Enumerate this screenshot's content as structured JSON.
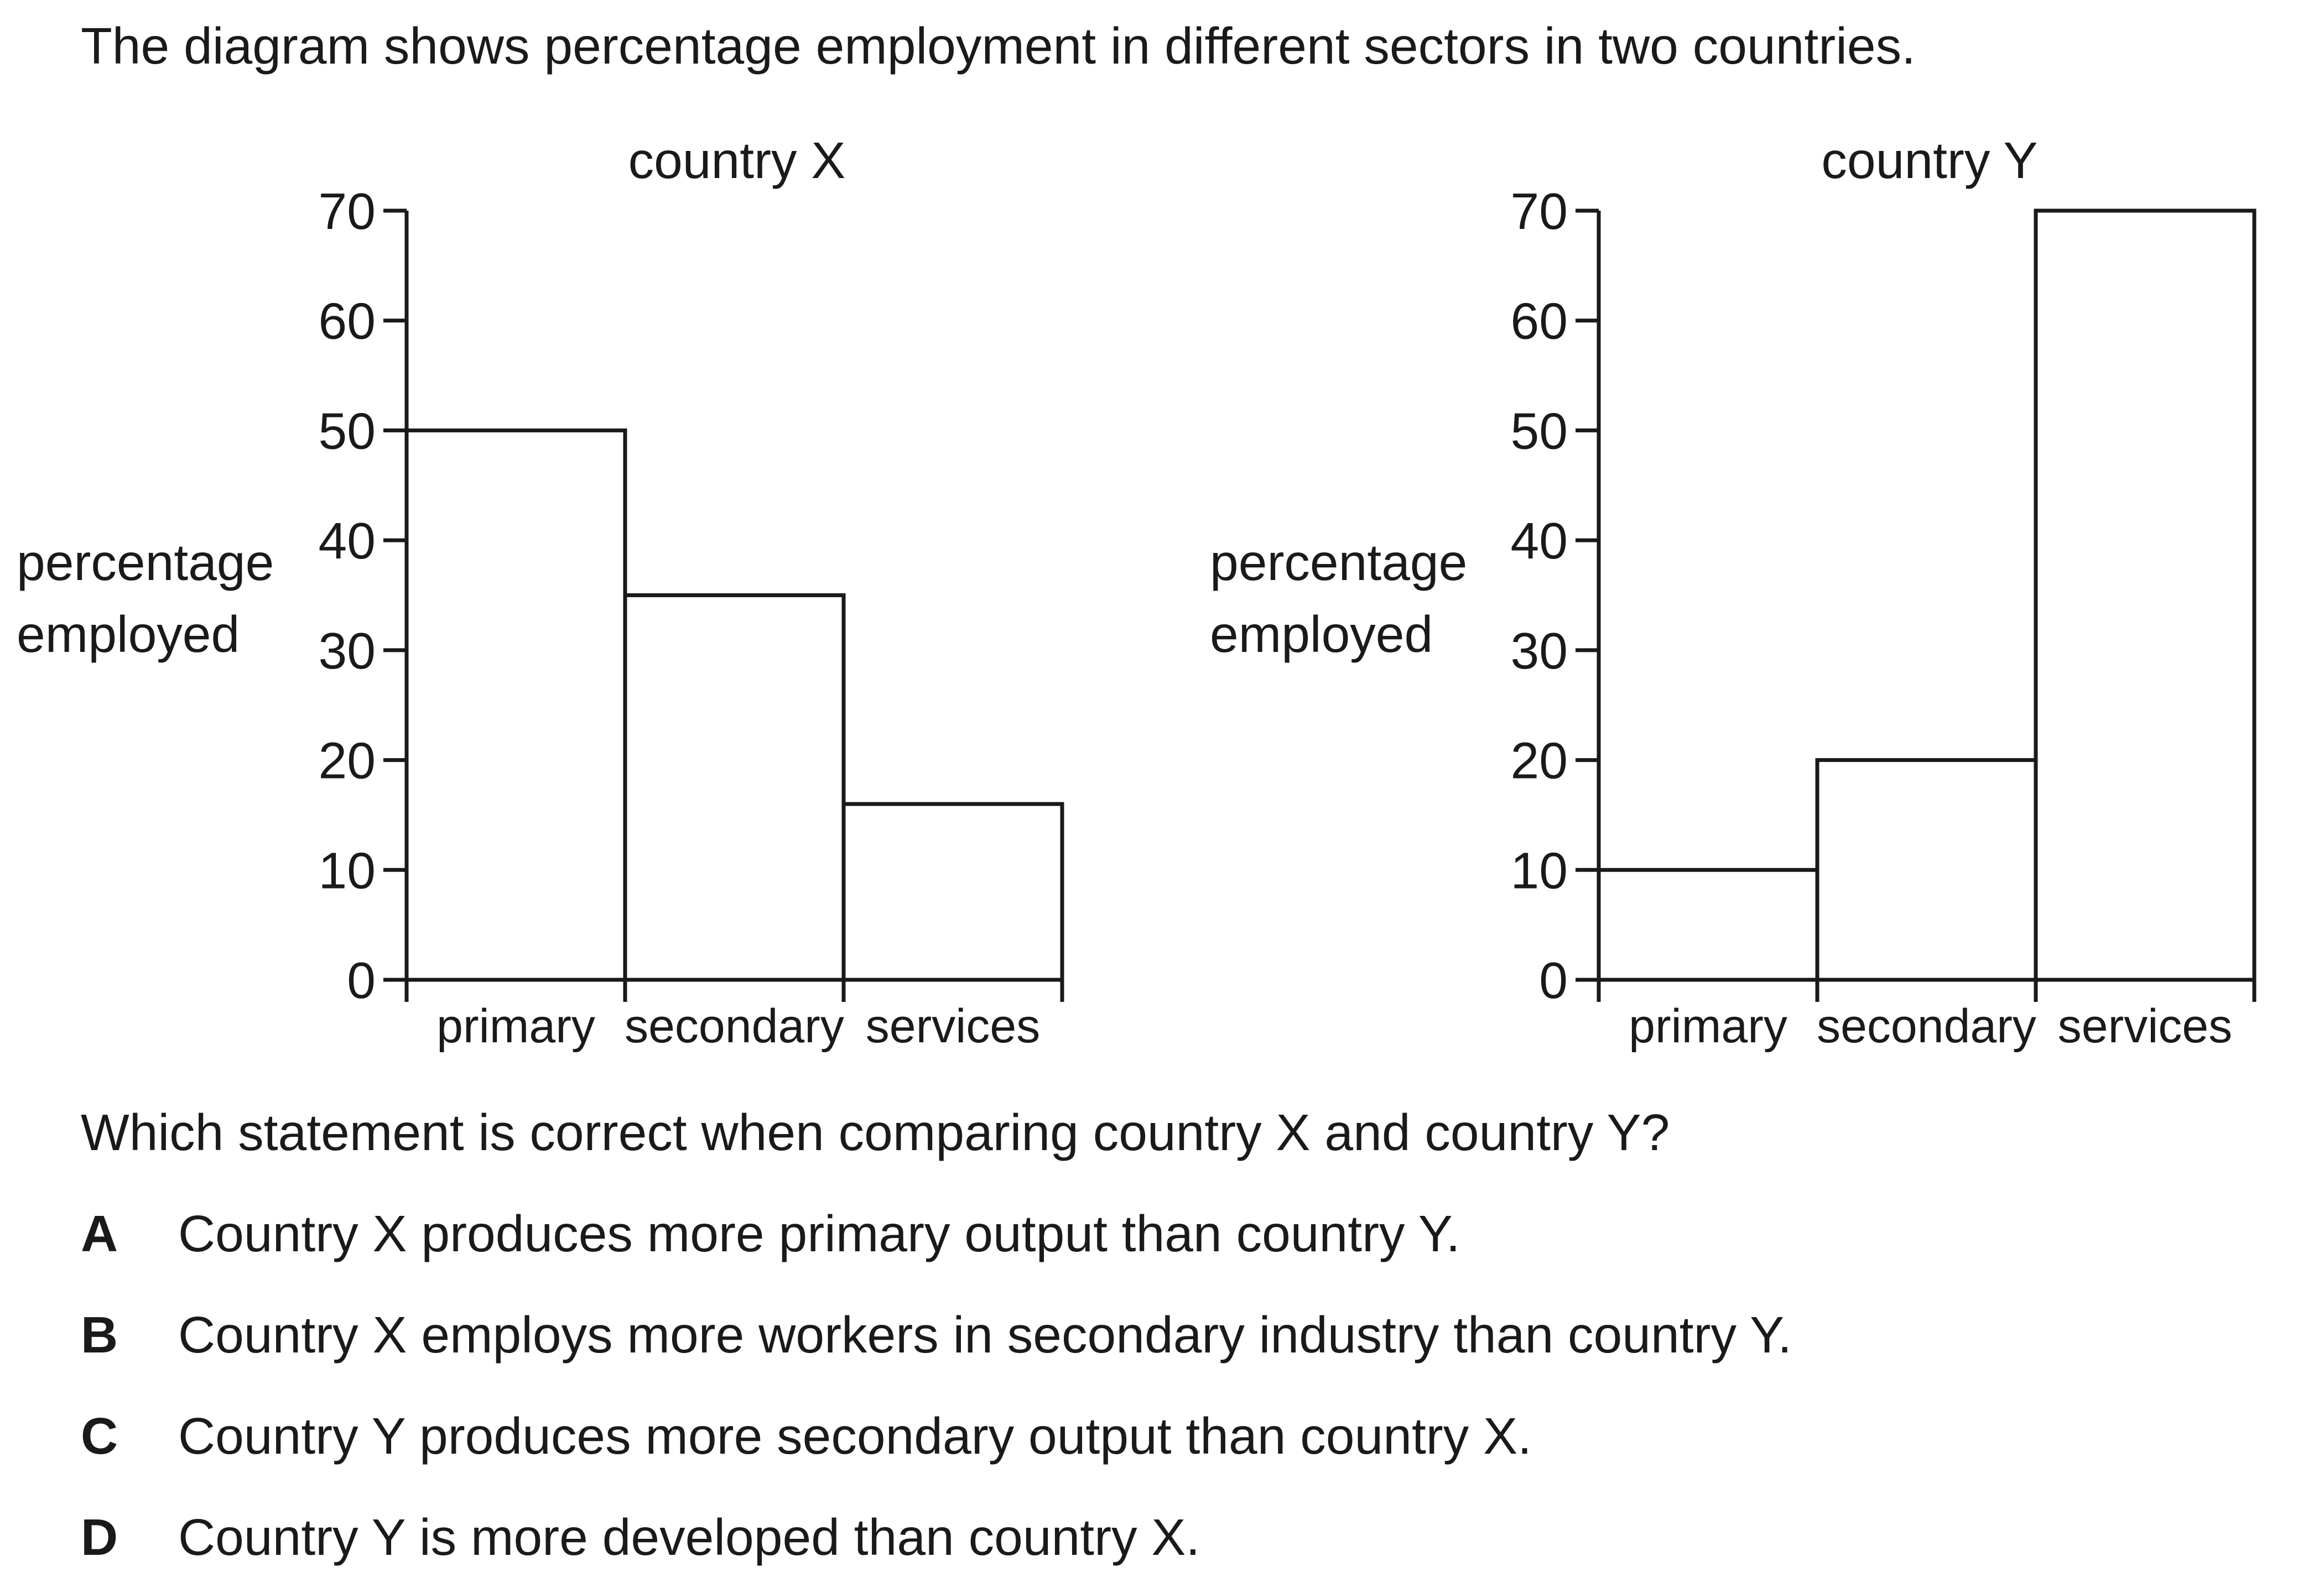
{
  "intro": "The diagram shows percentage employment in different sectors in two countries.",
  "question": "Which statement is correct when comparing country X and country Y?",
  "options": [
    {
      "letter": "A",
      "text": "Country X produces more primary output than country Y."
    },
    {
      "letter": "B",
      "text": "Country X employs more workers in secondary industry than country Y."
    },
    {
      "letter": "C",
      "text": "Country Y produces more secondary output than country X."
    },
    {
      "letter": "D",
      "text": "Country Y is more developed than country X."
    }
  ],
  "chart_data": [
    {
      "type": "bar",
      "title": "country X",
      "ylabel": [
        "percentage",
        "employed"
      ],
      "xlabel": "",
      "categories": [
        "primary",
        "secondary",
        "services"
      ],
      "values": [
        50,
        35,
        16
      ],
      "ylim": [
        0,
        70
      ],
      "yticks": [
        0,
        10,
        20,
        30,
        40,
        50,
        60,
        70
      ],
      "grid": false
    },
    {
      "type": "bar",
      "title": "country Y",
      "ylabel": [
        "percentage",
        "employed"
      ],
      "xlabel": "",
      "categories": [
        "primary",
        "secondary",
        "services"
      ],
      "values": [
        10,
        20,
        70
      ],
      "ylim": [
        0,
        70
      ],
      "yticks": [
        0,
        10,
        20,
        30,
        40,
        50,
        60,
        70
      ],
      "grid": false
    }
  ]
}
